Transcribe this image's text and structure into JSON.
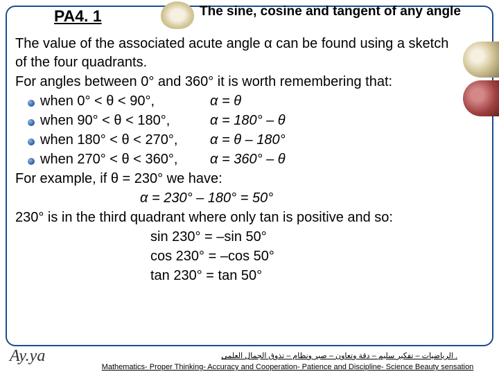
{
  "header": {
    "lesson_code": "PA4. 1",
    "title": "The sine, cosine and tangent of any angle"
  },
  "content": {
    "intro1": "The value of the associated acute angle α can be found using a sketch of the four quadrants.",
    "intro2": "For angles between 0° and 360° it is worth remembering that:",
    "rules": [
      {
        "cond": "when 0° < θ < 90°,",
        "form": "α = θ"
      },
      {
        "cond": "when 90° < θ < 180°,",
        "form": "α = 180° – θ"
      },
      {
        "cond": "when 180° < θ < 270°,",
        "form": "α = θ – 180°"
      },
      {
        "cond": "when 270° < θ < 360°,",
        "form": "α = 360° – θ"
      }
    ],
    "example_intro": "For example, if θ = 230° we have:",
    "example_calc": "α = 230° – 180° = 50°",
    "example_note": "230° is in the third quadrant where only tan is positive and so:",
    "results": [
      "sin 230° = –sin 50°",
      "cos 230° = –cos 50°",
      "tan 230° = tan 50°"
    ]
  },
  "footer": {
    "signature": "Ay.ya",
    "arabic": ". الرياضيات – تفكير سليم – دقة وتعاون – صبر ونظام – تذوق الجمال العلمى",
    "english": "Mathematics- Proper Thinking- Accuracy and Cooperation- Patience and Discipline- Science Beauty sensation"
  },
  "colors": {
    "frame": "#1a4d8f",
    "bullet_light": "#8ab8e8",
    "bullet_dark": "#2a5a9a"
  }
}
